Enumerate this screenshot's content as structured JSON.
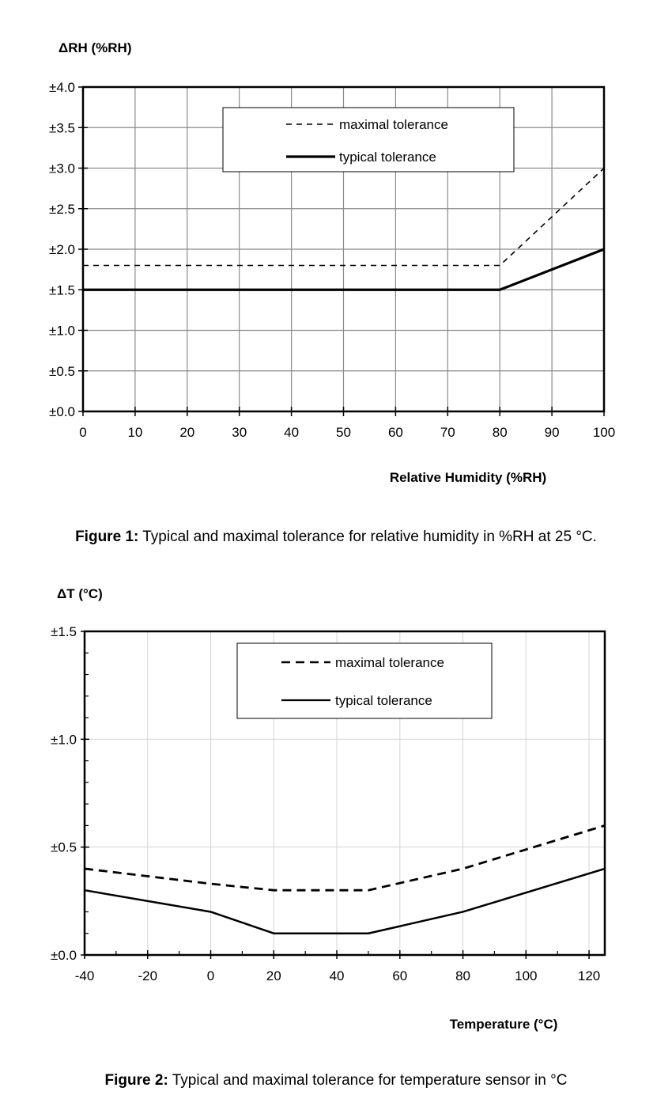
{
  "chart_data": [
    {
      "type": "line",
      "ylabel": "ΔRH (%RH)",
      "xlabel": "Relative Humidity (%RH)",
      "xlim": [
        0,
        100
      ],
      "ylim": [
        0,
        4
      ],
      "x_ticks": [
        "0",
        "10",
        "20",
        "30",
        "40",
        "50",
        "60",
        "70",
        "80",
        "90",
        "100"
      ],
      "x_tick_values": [
        0,
        10,
        20,
        30,
        40,
        50,
        60,
        70,
        80,
        90,
        100
      ],
      "y_ticks": [
        "±0.0",
        "±0.5",
        "±1.0",
        "±1.5",
        "±2.0",
        "±2.5",
        "±3.0",
        "±3.5",
        "±4.0"
      ],
      "y_tick_values": [
        0,
        0.5,
        1,
        1.5,
        2,
        2.5,
        3,
        3.5,
        4
      ],
      "grid": true,
      "legend_position": "top-center",
      "series": [
        {
          "name": "maximal tolerance",
          "style": "dashed",
          "x": [
            0,
            80,
            100
          ],
          "y": [
            1.8,
            1.8,
            3.0
          ]
        },
        {
          "name": "typical tolerance",
          "style": "solid",
          "x": [
            0,
            80,
            100
          ],
          "y": [
            1.5,
            1.5,
            2.0
          ]
        }
      ],
      "caption_label": "Figure 1:",
      "caption_text": " Typical and maximal tolerance for relative humidity in %RH at 25 °C."
    },
    {
      "type": "line",
      "ylabel": "ΔT (°C)",
      "xlabel": "Temperature (°C)",
      "xlim": [
        -40,
        125
      ],
      "ylim": [
        0,
        1.5
      ],
      "x_ticks": [
        "-40",
        "-20",
        "0",
        "20",
        "40",
        "60",
        "80",
        "100",
        "120"
      ],
      "x_tick_values": [
        -40,
        -20,
        0,
        20,
        40,
        60,
        80,
        100,
        120
      ],
      "y_ticks": [
        "±0.0",
        "±0.5",
        "±1.0",
        "±1.5"
      ],
      "y_tick_values": [
        0,
        0.5,
        1.0,
        1.5
      ],
      "grid": true,
      "legend_position": "top-center",
      "series": [
        {
          "name": "maximal tolerance",
          "style": "dashed",
          "x": [
            -40,
            0,
            20,
            50,
            80,
            125
          ],
          "y": [
            0.4,
            0.33,
            0.3,
            0.3,
            0.4,
            0.6
          ]
        },
        {
          "name": "typical tolerance",
          "style": "solid",
          "x": [
            -40,
            0,
            20,
            50,
            80,
            125
          ],
          "y": [
            0.3,
            0.2,
            0.1,
            0.1,
            0.2,
            0.4
          ]
        }
      ],
      "caption_label": "Figure 2:",
      "caption_text": " Typical and maximal tolerance for temperature sensor in °C"
    }
  ]
}
